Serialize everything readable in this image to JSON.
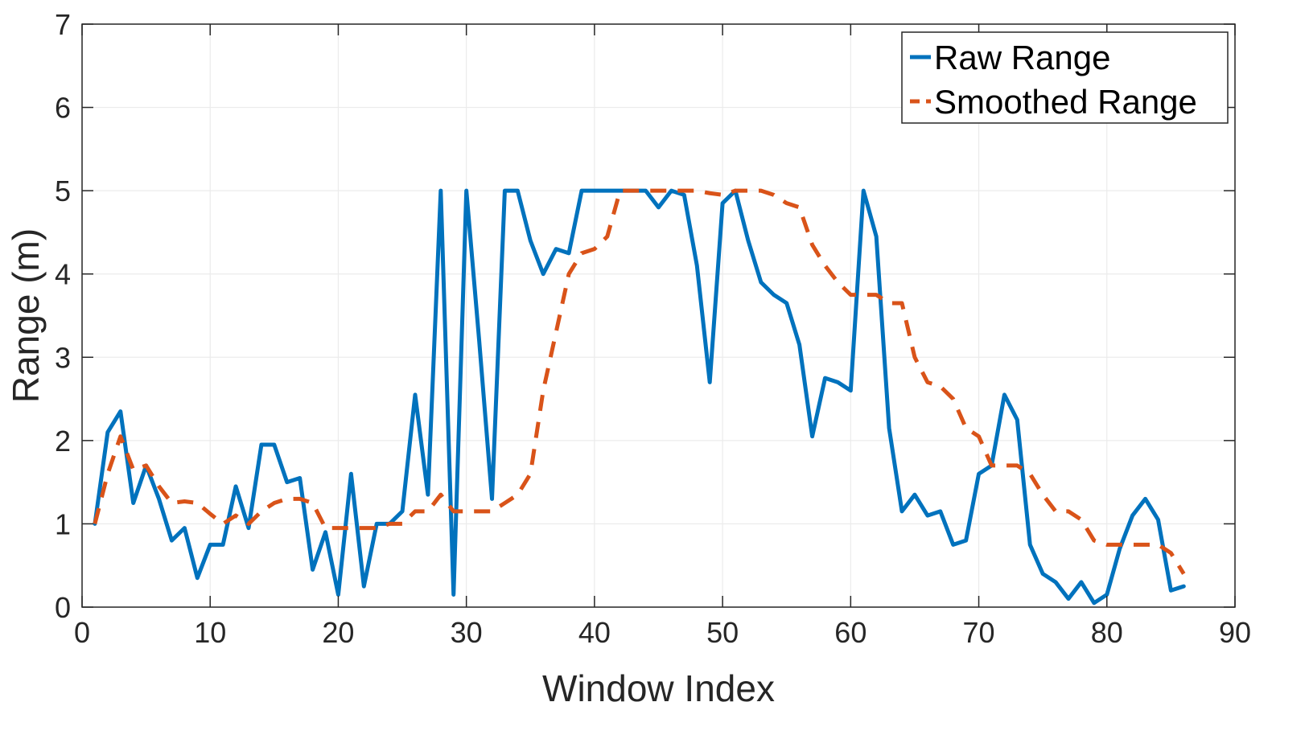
{
  "chart_data": {
    "type": "line",
    "title": "",
    "xlabel": "Window Index",
    "ylabel": "Range (m)",
    "xlim": [
      0,
      90
    ],
    "ylim": [
      0,
      7
    ],
    "xticks": [
      0,
      10,
      20,
      30,
      40,
      50,
      60,
      70,
      80,
      90
    ],
    "yticks": [
      0,
      1,
      2,
      3,
      4,
      5,
      6,
      7
    ],
    "grid": true,
    "legend_position": "top-right",
    "x": [
      1,
      2,
      3,
      4,
      5,
      6,
      7,
      8,
      9,
      10,
      11,
      12,
      13,
      14,
      15,
      16,
      17,
      18,
      19,
      20,
      21,
      22,
      23,
      24,
      25,
      26,
      27,
      28,
      29,
      30,
      31,
      32,
      33,
      34,
      35,
      36,
      37,
      38,
      39,
      40,
      41,
      42,
      43,
      44,
      45,
      46,
      47,
      48,
      49,
      50,
      51,
      52,
      53,
      54,
      55,
      56,
      57,
      58,
      59,
      60,
      61,
      62,
      63,
      64,
      65,
      66,
      67,
      68,
      69,
      70,
      71,
      72,
      73,
      74,
      75,
      76,
      77,
      78,
      79,
      80,
      81,
      82,
      83,
      84,
      85,
      86
    ],
    "series": [
      {
        "name": "Raw Range",
        "color": "#0072BD",
        "style": "solid",
        "values": [
          1.0,
          2.1,
          2.35,
          1.25,
          1.7,
          1.3,
          0.8,
          0.95,
          0.35,
          0.75,
          0.75,
          1.45,
          0.95,
          1.95,
          1.95,
          1.5,
          1.55,
          0.45,
          0.9,
          0.15,
          1.6,
          0.25,
          1.0,
          1.0,
          1.15,
          2.55,
          1.35,
          5.0,
          0.15,
          5.0,
          3.2,
          1.3,
          5.0,
          5.0,
          4.4,
          4.0,
          4.3,
          4.25,
          5.0,
          5.0,
          5.0,
          5.0,
          5.0,
          5.0,
          4.8,
          5.0,
          4.95,
          4.1,
          2.7,
          4.85,
          5.0,
          4.4,
          3.9,
          3.75,
          3.65,
          3.15,
          2.05,
          2.75,
          2.7,
          2.6,
          5.0,
          4.45,
          2.15,
          1.15,
          1.35,
          1.1,
          1.15,
          0.75,
          0.8,
          1.6,
          1.7,
          2.55,
          2.25,
          0.75,
          0.4,
          0.3,
          0.1,
          0.3,
          0.05,
          0.15,
          0.7,
          1.1,
          1.3,
          1.05,
          0.2,
          0.25
        ]
      },
      {
        "name": "Smoothed Range",
        "color": "#D95319",
        "style": "dashed",
        "values": [
          1.0,
          1.6,
          2.05,
          1.65,
          1.7,
          1.45,
          1.25,
          1.27,
          1.25,
          1.12,
          1.0,
          1.1,
          1.0,
          1.15,
          1.25,
          1.3,
          1.3,
          1.25,
          0.95,
          0.95,
          0.95,
          0.95,
          0.95,
          1.0,
          1.0,
          1.15,
          1.15,
          1.35,
          1.15,
          1.15,
          1.15,
          1.15,
          1.25,
          1.35,
          1.6,
          2.6,
          3.3,
          4.0,
          4.25,
          4.3,
          4.45,
          5.0,
          5.0,
          5.0,
          5.0,
          5.0,
          5.0,
          5.0,
          4.97,
          4.95,
          5.0,
          5.0,
          5.0,
          4.95,
          4.85,
          4.8,
          4.35,
          4.1,
          3.9,
          3.75,
          3.75,
          3.75,
          3.65,
          3.65,
          3.0,
          2.7,
          2.65,
          2.5,
          2.15,
          2.05,
          1.7,
          1.7,
          1.7,
          1.6,
          1.35,
          1.15,
          1.15,
          1.05,
          0.8,
          0.75,
          0.75,
          0.75,
          0.75,
          0.75,
          0.65,
          0.4
        ]
      }
    ]
  }
}
